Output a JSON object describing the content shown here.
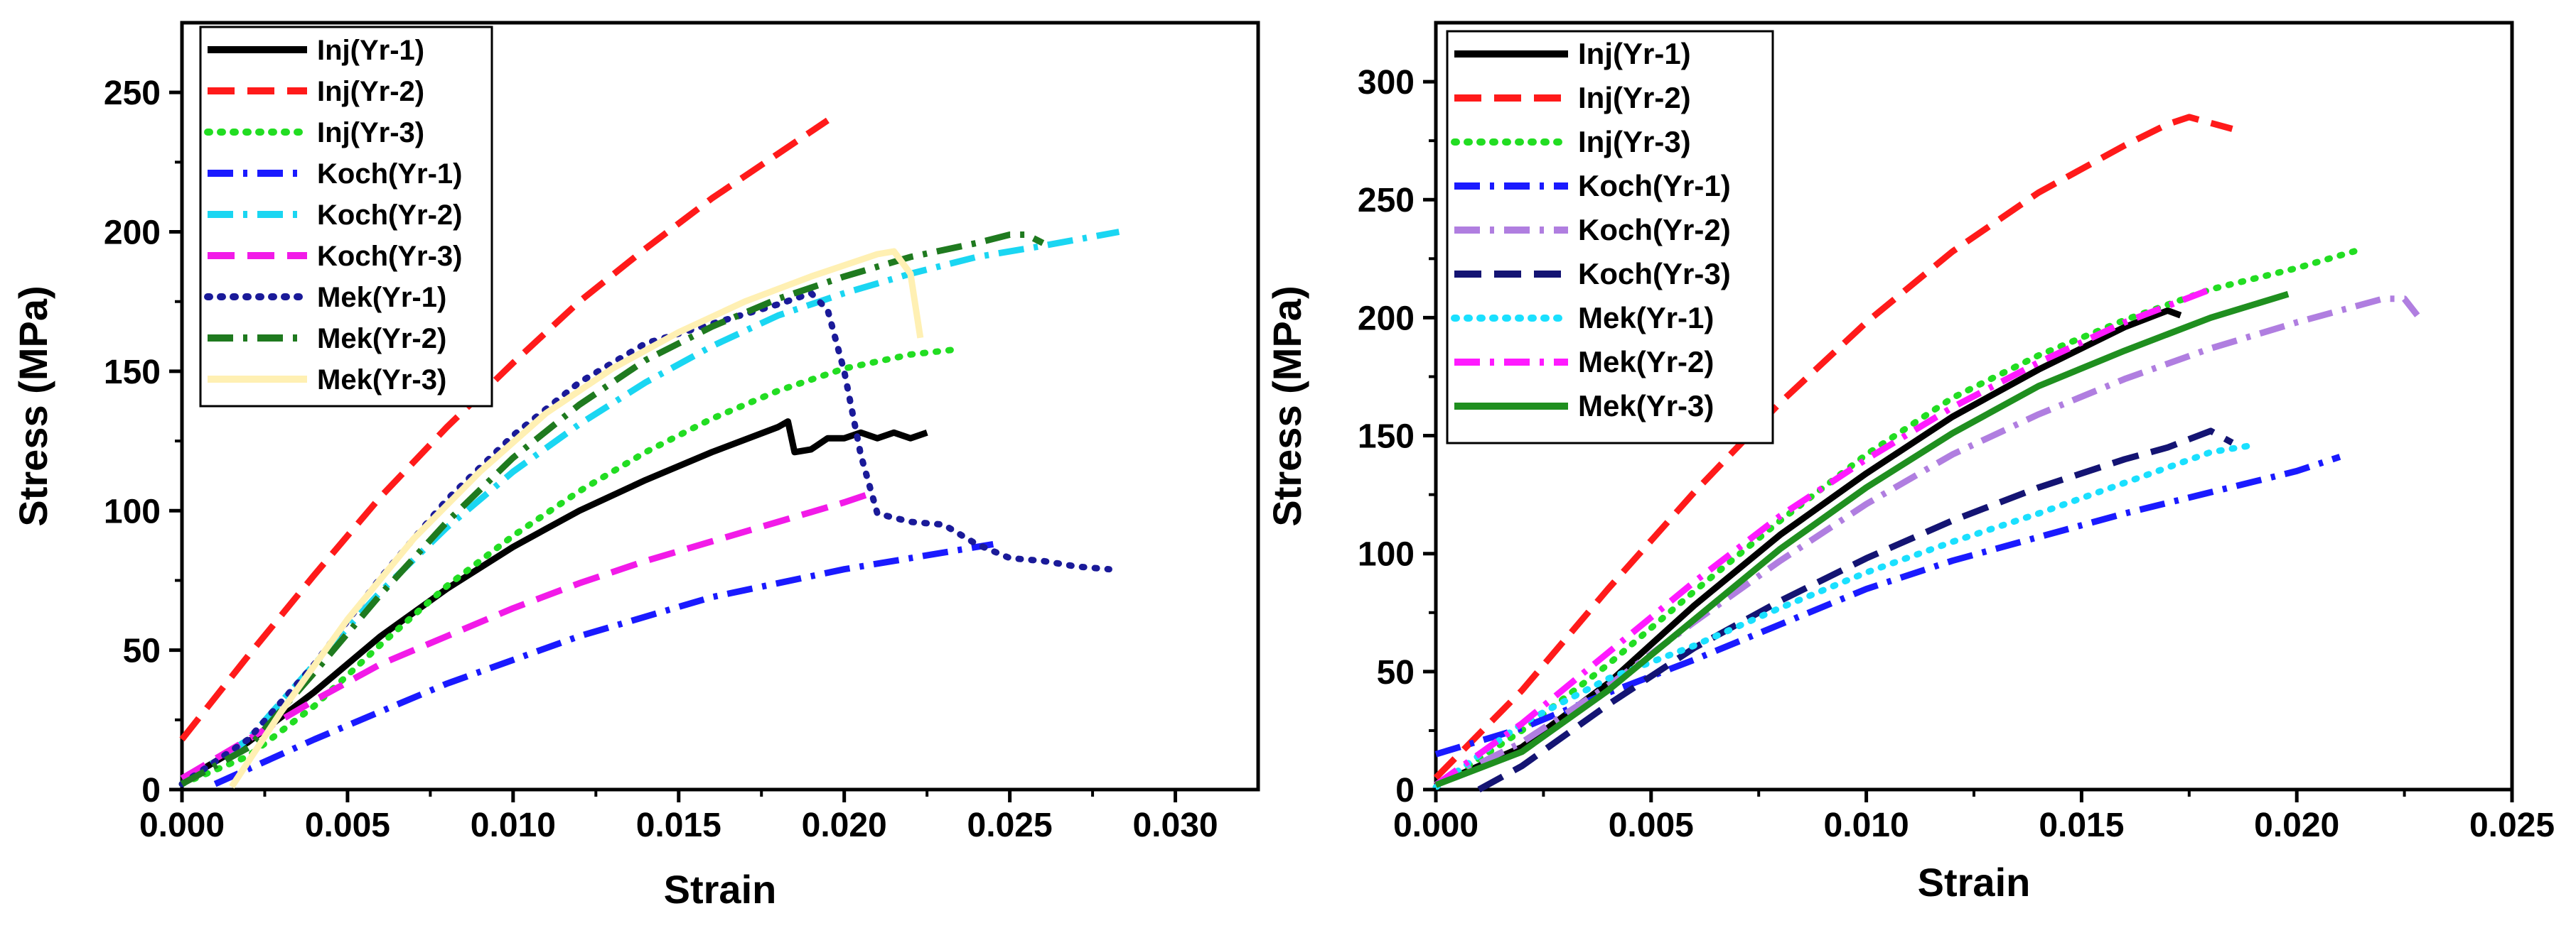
{
  "chart_data": [
    {
      "type": "line",
      "xlabel": "Strain",
      "ylabel": "Stress (MPa)",
      "xlim": [
        0,
        0.0325
      ],
      "ylim": [
        0,
        275
      ],
      "xticks": [
        0.0,
        0.005,
        0.01,
        0.015,
        0.02,
        0.025,
        0.03
      ],
      "xtick_labels": [
        "0.000",
        "0.005",
        "0.010",
        "0.015",
        "0.020",
        "0.025",
        "0.030"
      ],
      "yticks": [
        0,
        50,
        100,
        150,
        200,
        250
      ],
      "ytick_labels": [
        "0",
        "50",
        "100",
        "150",
        "200",
        "250"
      ],
      "legend_position": "top-left",
      "series": [
        {
          "name": "Inj(Yr-1)",
          "color": "#000000",
          "dash": "solid",
          "x": [
            0.0,
            0.002,
            0.004,
            0.006,
            0.008,
            0.01,
            0.012,
            0.014,
            0.016,
            0.018,
            0.0183,
            0.0185,
            0.019,
            0.0195,
            0.02,
            0.0205,
            0.021,
            0.0215,
            0.022,
            0.0225
          ],
          "y": [
            3,
            17,
            35,
            55,
            72,
            87,
            100,
            111,
            121,
            130,
            132,
            121,
            122,
            126,
            126,
            128,
            126,
            128,
            126,
            128
          ]
        },
        {
          "name": "Inj(Yr-2)",
          "color": "#ff1a1a",
          "dash": "dashed",
          "x": [
            0.0,
            0.002,
            0.004,
            0.006,
            0.008,
            0.01,
            0.012,
            0.014,
            0.016,
            0.018,
            0.0195
          ],
          "y": [
            18,
            48,
            77,
            105,
            130,
            153,
            175,
            194,
            212,
            228,
            240
          ]
        },
        {
          "name": "Inj(Yr-3)",
          "color": "#22dd22",
          "dash": "dotted",
          "x": [
            0.0,
            0.002,
            0.004,
            0.006,
            0.008,
            0.01,
            0.012,
            0.014,
            0.016,
            0.018,
            0.02,
            0.022,
            0.0235
          ],
          "y": [
            2,
            12,
            30,
            52,
            73,
            91,
            107,
            121,
            133,
            143,
            151,
            156,
            158
          ]
        },
        {
          "name": "Koch(Yr-1)",
          "color": "#1a1aff",
          "dash": "dashdot",
          "x": [
            0.001,
            0.004,
            0.008,
            0.012,
            0.016,
            0.02,
            0.0245
          ],
          "y": [
            2,
            18,
            38,
            55,
            69,
            79,
            88
          ]
        },
        {
          "name": "Koch(Yr-2)",
          "color": "#1ad6f2",
          "dash": "dashdot",
          "x": [
            0.0,
            0.002,
            0.004,
            0.006,
            0.008,
            0.01,
            0.012,
            0.014,
            0.016,
            0.018,
            0.02,
            0.022,
            0.024,
            0.026,
            0.0283
          ],
          "y": [
            2,
            18,
            45,
            71,
            94,
            114,
            131,
            146,
            159,
            170,
            178,
            185,
            191,
            195,
            200
          ]
        },
        {
          "name": "Koch(Yr-3)",
          "color": "#f21ae8",
          "dash": "dashed",
          "x": [
            0.0,
            0.002,
            0.004,
            0.006,
            0.008,
            0.01,
            0.012,
            0.014,
            0.016,
            0.018,
            0.02,
            0.021
          ],
          "y": [
            4,
            18,
            32,
            45,
            55,
            65,
            74,
            82,
            89,
            96,
            103,
            107
          ]
        },
        {
          "name": "Mek(Yr-1)",
          "color": "#1a1a99",
          "dash": "dotted",
          "x": [
            0.0,
            0.002,
            0.004,
            0.006,
            0.008,
            0.01,
            0.012,
            0.014,
            0.016,
            0.018,
            0.019,
            0.0195,
            0.02,
            0.0205,
            0.021,
            0.022,
            0.023,
            0.024,
            0.025,
            0.026,
            0.027,
            0.028
          ],
          "y": [
            2,
            18,
            45,
            76,
            104,
            127,
            146,
            160,
            167,
            174,
            178,
            172,
            150,
            120,
            99,
            96,
            95,
            88,
            83,
            82,
            80,
            79
          ]
        },
        {
          "name": "Mek(Yr-2)",
          "color": "#1f7a1f",
          "dash": "dashdot",
          "x": [
            0.0,
            0.002,
            0.004,
            0.006,
            0.008,
            0.01,
            0.012,
            0.014,
            0.016,
            0.018,
            0.02,
            0.022,
            0.024,
            0.025,
            0.0255,
            0.026
          ],
          "y": [
            2,
            15,
            42,
            70,
            96,
            119,
            138,
            154,
            166,
            176,
            184,
            191,
            196,
            199,
            199,
            196
          ]
        },
        {
          "name": "Mek(Yr-3)",
          "color": "#fff0b3",
          "dash": "solid",
          "x": [
            0.0015,
            0.003,
            0.005,
            0.007,
            0.009,
            0.011,
            0.013,
            0.015,
            0.017,
            0.019,
            0.021,
            0.0215,
            0.022,
            0.0223
          ],
          "y": [
            1,
            28,
            61,
            90,
            114,
            135,
            151,
            164,
            175,
            184,
            192,
            193,
            185,
            162
          ]
        }
      ]
    },
    {
      "type": "line",
      "xlabel": "Strain",
      "ylabel": "Stress (MPa)",
      "xlim": [
        0,
        0.025
      ],
      "ylim": [
        0,
        325
      ],
      "xticks": [
        0.0,
        0.005,
        0.01,
        0.015,
        0.02,
        0.025
      ],
      "xtick_labels": [
        "0.000",
        "0.005",
        "0.010",
        "0.015",
        "0.020",
        "0.025"
      ],
      "yticks": [
        0,
        50,
        100,
        150,
        200,
        250,
        300
      ],
      "ytick_labels": [
        "0",
        "50",
        "100",
        "150",
        "200",
        "250",
        "300"
      ],
      "legend_position": "top-left",
      "series": [
        {
          "name": "Inj(Yr-1)",
          "color": "#000000",
          "dash": "solid",
          "x": [
            0.0,
            0.002,
            0.004,
            0.006,
            0.008,
            0.01,
            0.012,
            0.014,
            0.016,
            0.017,
            0.0173
          ],
          "y": [
            2,
            18,
            45,
            78,
            108,
            134,
            158,
            178,
            196,
            203,
            201
          ]
        },
        {
          "name": "Inj(Yr-2)",
          "color": "#ff1a1a",
          "dash": "dashed",
          "x": [
            0.0,
            0.002,
            0.004,
            0.006,
            0.008,
            0.01,
            0.012,
            0.014,
            0.016,
            0.017,
            0.0175,
            0.0185
          ],
          "y": [
            5,
            42,
            85,
            126,
            164,
            198,
            228,
            253,
            273,
            282,
            285,
            280
          ]
        },
        {
          "name": "Inj(Yr-3)",
          "color": "#22dd22",
          "dash": "dotted",
          "x": [
            0.0,
            0.002,
            0.004,
            0.006,
            0.008,
            0.01,
            0.012,
            0.014,
            0.016,
            0.018,
            0.02,
            0.0215
          ],
          "y": [
            1,
            25,
            53,
            84,
            114,
            142,
            166,
            184,
            199,
            212,
            221,
            229
          ]
        },
        {
          "name": "Koch(Yr-1)",
          "color": "#1a1aff",
          "dash": "dashdot",
          "x": [
            0.0,
            0.002,
            0.004,
            0.006,
            0.008,
            0.01,
            0.012,
            0.014,
            0.016,
            0.018,
            0.02,
            0.021
          ],
          "y": [
            15,
            26,
            41,
            55,
            70,
            85,
            97,
            107,
            117,
            126,
            135,
            141
          ]
        },
        {
          "name": "Koch(Yr-2)",
          "color": "#b07ee0",
          "dash": "dashdot",
          "x": [
            0.0,
            0.002,
            0.004,
            0.006,
            0.008,
            0.01,
            0.012,
            0.014,
            0.016,
            0.018,
            0.02,
            0.022,
            0.0225,
            0.0228
          ],
          "y": [
            2,
            20,
            44,
            71,
            97,
            121,
            142,
            159,
            174,
            187,
            198,
            208,
            208,
            201
          ]
        },
        {
          "name": "Koch(Yr-3)",
          "color": "#141473",
          "dash": "dashed",
          "x": [
            0.001,
            0.002,
            0.004,
            0.006,
            0.008,
            0.01,
            0.012,
            0.014,
            0.016,
            0.017,
            0.018,
            0.0185
          ],
          "y": [
            0,
            10,
            36,
            60,
            80,
            98,
            114,
            128,
            140,
            145,
            152,
            147
          ]
        },
        {
          "name": "Mek(Yr-1)",
          "color": "#1ae0ff",
          "dash": "dotted",
          "x": [
            0.0,
            0.002,
            0.004,
            0.006,
            0.008,
            0.01,
            0.012,
            0.014,
            0.016,
            0.018,
            0.019
          ],
          "y": [
            1,
            28,
            47,
            61,
            77,
            92,
            105,
            117,
            130,
            143,
            146
          ]
        },
        {
          "name": "Mek(Yr-2)",
          "color": "#ff1aff",
          "dash": "dashdot",
          "x": [
            0.0,
            0.002,
            0.004,
            0.006,
            0.008,
            0.01,
            0.012,
            0.014,
            0.016,
            0.018
          ],
          "y": [
            2,
            28,
            58,
            88,
            116,
            140,
            162,
            181,
            198,
            212
          ]
        },
        {
          "name": "Mek(Yr-3)",
          "color": "#1f8f1f",
          "dash": "solid",
          "x": [
            0.0,
            0.002,
            0.004,
            0.006,
            0.008,
            0.01,
            0.012,
            0.014,
            0.016,
            0.018,
            0.0198
          ],
          "y": [
            2,
            16,
            42,
            72,
            102,
            128,
            151,
            171,
            186,
            200,
            210
          ]
        }
      ]
    }
  ]
}
